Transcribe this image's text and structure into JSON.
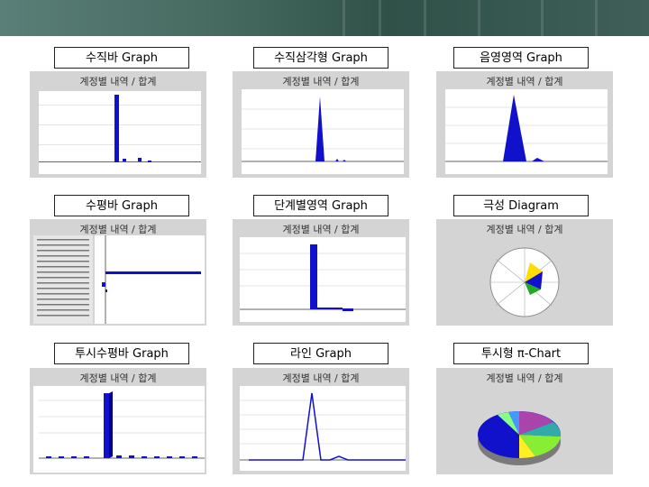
{
  "labels": {
    "vbar": "수직바 Graph",
    "vtri": "수직삼각형 Graph",
    "shade": "음영영역 Graph",
    "hbar": "수평바 Graph",
    "step": "단계별영역 Graph",
    "polar": "극성 Diagram",
    "hbar3d": "투시수평바 Graph",
    "line": "라인 Graph",
    "pie3d": "투시형 π-Chart"
  },
  "thumb_titles": {
    "vbar": "계정별 내역 / 합계",
    "vtri": "계정별 내역 / 합계",
    "shade": "계정별 내역 / 합계",
    "hbar": "계정별 내역 / 합계",
    "step": "계정별 내역 / 합계",
    "polar": "계정별 내역 / 합계",
    "hbar3d": "계정별 내역 / 합계",
    "line": "계정별 내역 / 합계",
    "pie3d": "계정별 내역 / 합계"
  },
  "colors": {
    "series": "#1111cc",
    "banner": "#46695f",
    "thumb_bg": "#d4d4d4"
  }
}
